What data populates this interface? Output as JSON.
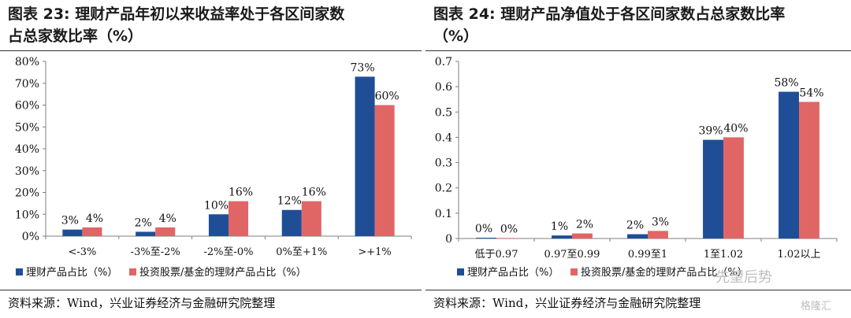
{
  "colors": {
    "series1": "#1f4e96",
    "series2": "#e06666",
    "axis": "#7f7f7f"
  },
  "left": {
    "title_line1": "图表 23:  理财产品年初以来收益率处于各区间家数",
    "title_line2": "占总家数比率（%）",
    "source": "资料来源：Wind，兴业证券经济与金融研究院整理"
  },
  "right": {
    "title_line1": "图表 24:  理财产品净值处于各区间家数占总家数比率",
    "title_line2": "（%）",
    "source": "资料来源：Wind，兴业证券经济与金融研究院整理"
  },
  "watermark": {
    "brand": "格隆汇",
    "account": "先望后势"
  },
  "chart_data": [
    {
      "type": "bar",
      "categories": [
        "<-3%",
        "-3%至-2%",
        "-2%至-0%",
        "0%至+1%",
        ">+1%"
      ],
      "series": [
        {
          "name": "理财产品占比（%）",
          "values": [
            3,
            2,
            10,
            12,
            73
          ],
          "labels": [
            "3%",
            "2%",
            "10%",
            "12%",
            "73%"
          ]
        },
        {
          "name": "投资股票/基金的理财产品占比（%）",
          "values": [
            4,
            4,
            16,
            16,
            60
          ],
          "labels": [
            "4%",
            "4%",
            "16%",
            "16%",
            "60%"
          ]
        }
      ],
      "yticks": [
        "0%",
        "10%",
        "20%",
        "30%",
        "40%",
        "50%",
        "60%",
        "70%",
        "80%"
      ],
      "ylim": [
        0,
        80
      ],
      "legend": "bottom"
    },
    {
      "type": "bar",
      "categories": [
        "低于0.97",
        "0.97至0.99",
        "0.99至1",
        "1至1.02",
        "1.02以上"
      ],
      "series": [
        {
          "name": "理财产品占比（%）",
          "values": [
            0.003,
            0.012,
            0.017,
            0.39,
            0.58
          ],
          "labels": [
            "0%",
            "1%",
            "2%",
            "39%",
            "58%"
          ]
        },
        {
          "name": "投资股票/基金的理财产品占比（%）",
          "values": [
            0.002,
            0.02,
            0.03,
            0.4,
            0.54
          ],
          "labels": [
            "0%",
            "2%",
            "3%",
            "40%",
            "54%"
          ]
        }
      ],
      "yticks": [
        "0",
        "0.1",
        "0.2",
        "0.3",
        "0.4",
        "0.5",
        "0.6",
        "0.7"
      ],
      "ylim": [
        0,
        0.7
      ],
      "legend": "bottom"
    }
  ]
}
